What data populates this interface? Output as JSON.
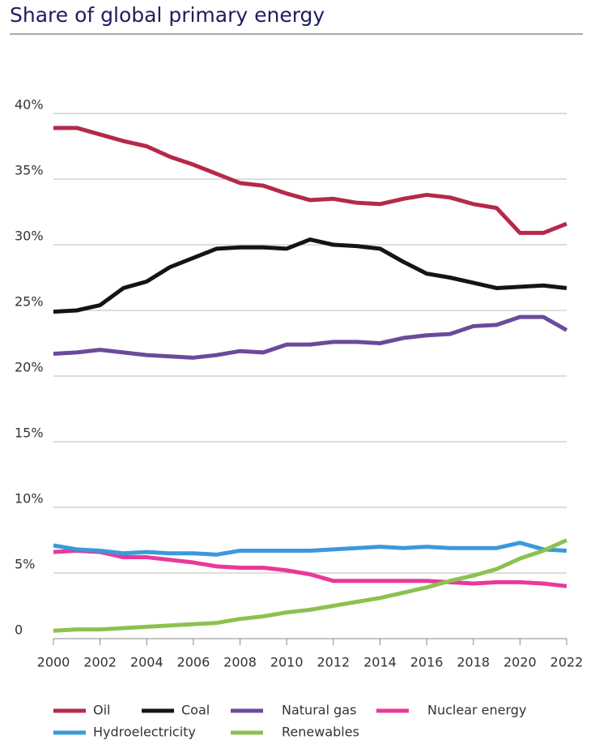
{
  "chart_data": {
    "type": "line",
    "title": "Share of global primary energy",
    "x": [
      2000,
      2001,
      2002,
      2003,
      2004,
      2005,
      2006,
      2007,
      2008,
      2009,
      2010,
      2011,
      2012,
      2013,
      2014,
      2015,
      2016,
      2017,
      2018,
      2019,
      2020,
      2021,
      2022
    ],
    "xlim": [
      2000,
      2022
    ],
    "xticks": [
      2000,
      2002,
      2004,
      2006,
      2008,
      2010,
      2012,
      2014,
      2016,
      2018,
      2020,
      2022
    ],
    "ylim": [
      0,
      40
    ],
    "yticks": [
      0,
      {
        "value": 5,
        "label": "5%"
      },
      {
        "value": 10,
        "label": "10%"
      },
      {
        "value": 15,
        "label": "15%"
      },
      {
        "value": 20,
        "label": "20%"
      },
      {
        "value": 25,
        "label": "25%"
      },
      {
        "value": 30,
        "label": "30%"
      },
      {
        "value": 35,
        "label": "35%"
      },
      {
        "value": 40,
        "label": "40%"
      }
    ],
    "grid": true,
    "series": [
      {
        "name": "Oil",
        "color": "#b5294a",
        "values": [
          38.9,
          38.9,
          38.4,
          37.9,
          37.5,
          36.7,
          36.1,
          35.4,
          34.7,
          34.5,
          33.9,
          33.4,
          33.5,
          33.2,
          33.1,
          33.5,
          33.8,
          33.6,
          33.1,
          32.8,
          30.9,
          30.9,
          31.6
        ]
      },
      {
        "name": "Coal",
        "color": "#141414",
        "values": [
          24.9,
          25.0,
          25.4,
          26.7,
          27.2,
          28.3,
          29.0,
          29.7,
          29.8,
          29.8,
          29.7,
          30.4,
          30.0,
          29.9,
          29.7,
          28.7,
          27.8,
          27.5,
          27.1,
          26.7,
          26.8,
          26.9,
          26.7
        ]
      },
      {
        "name": "Natural gas",
        "color": "#6b4a9c",
        "values": [
          21.7,
          21.8,
          22.0,
          21.8,
          21.6,
          21.5,
          21.4,
          21.6,
          21.9,
          21.8,
          22.4,
          22.4,
          22.6,
          22.6,
          22.5,
          22.9,
          23.1,
          23.2,
          23.8,
          23.9,
          24.5,
          24.5,
          23.5
        ]
      },
      {
        "name": "Nuclear energy",
        "color": "#e8399a",
        "values": [
          6.6,
          6.7,
          6.6,
          6.2,
          6.2,
          6.0,
          5.8,
          5.5,
          5.4,
          5.4,
          5.2,
          4.9,
          4.4,
          4.4,
          4.4,
          4.4,
          4.4,
          4.3,
          4.2,
          4.3,
          4.3,
          4.2,
          4.0
        ]
      },
      {
        "name": "Hydroelectricity",
        "color": "#3a9ad9",
        "values": [
          7.1,
          6.8,
          6.7,
          6.5,
          6.6,
          6.5,
          6.5,
          6.4,
          6.7,
          6.7,
          6.7,
          6.7,
          6.8,
          6.9,
          7.0,
          6.9,
          7.0,
          6.9,
          6.9,
          6.9,
          7.3,
          6.8,
          6.7
        ]
      },
      {
        "name": "Renewables",
        "color": "#8cc152",
        "values": [
          0.6,
          0.7,
          0.7,
          0.8,
          0.9,
          1.0,
          1.1,
          1.2,
          1.5,
          1.7,
          2.0,
          2.2,
          2.5,
          2.8,
          3.1,
          3.5,
          3.9,
          4.4,
          4.8,
          5.3,
          6.1,
          6.7,
          7.5
        ]
      }
    ]
  }
}
